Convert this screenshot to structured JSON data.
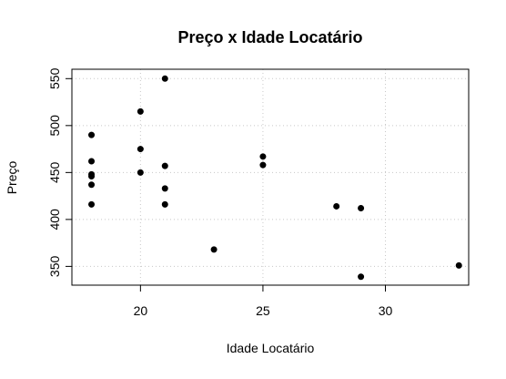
{
  "chart_data": {
    "type": "scatter",
    "title": "Preço x Idade Locatário",
    "xlabel": "Idade Locatário",
    "ylabel": "Preço",
    "xlim": [
      17.2,
      33.4
    ],
    "ylim": [
      330,
      560
    ],
    "xticks": [
      20,
      25,
      30
    ],
    "yticks": [
      350,
      400,
      450,
      500,
      550
    ],
    "grid": true,
    "grid_style": "dotted",
    "point_color": "#000000",
    "series": [
      {
        "x": [
          18,
          18,
          18,
          18,
          18,
          18,
          20,
          20,
          20,
          21,
          21,
          21,
          21,
          23,
          25,
          25,
          28,
          29,
          29,
          33
        ],
        "y": [
          490,
          462,
          448,
          446,
          437,
          416,
          515,
          475,
          450,
          550,
          457,
          433,
          416,
          368,
          467,
          458,
          414,
          412,
          339,
          351
        ]
      }
    ]
  }
}
